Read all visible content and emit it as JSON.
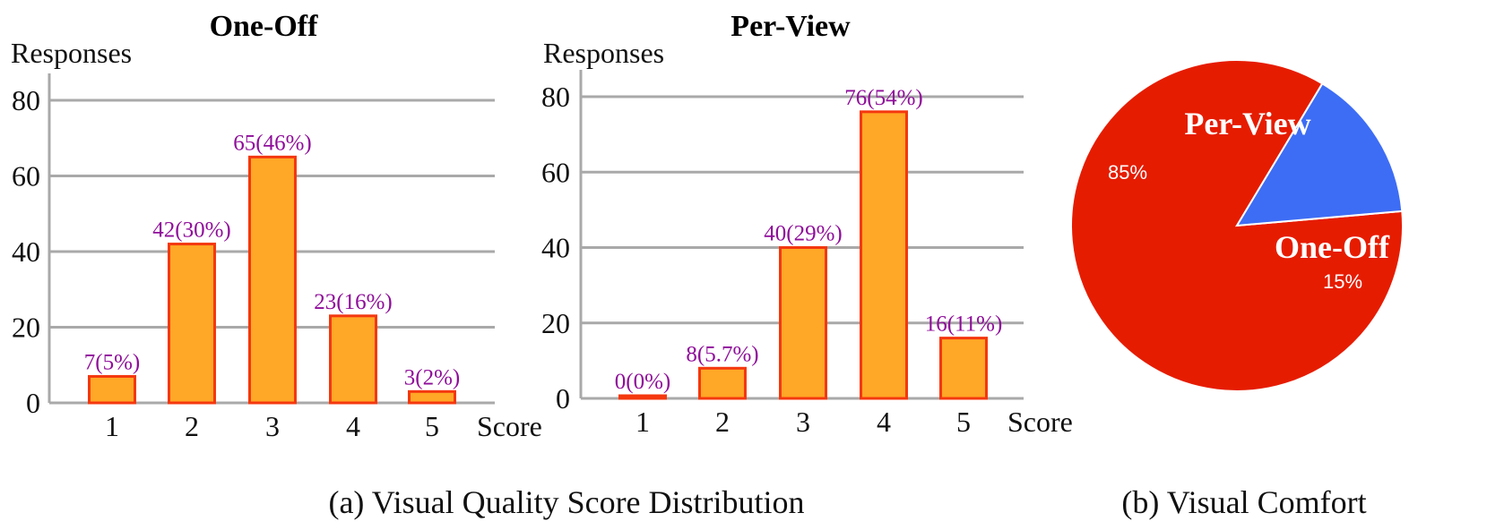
{
  "chart_data": [
    {
      "type": "bar",
      "title": "One-Off",
      "ylabel": "Responses",
      "xlabel": "Score",
      "categories": [
        "1",
        "2",
        "3",
        "4",
        "5"
      ],
      "values": [
        7,
        42,
        65,
        23,
        3
      ],
      "data_labels": [
        "7(5%)",
        "42(30%)",
        "65(46%)",
        "23(16%)",
        "3(2%)"
      ],
      "y_ticks": [
        "0",
        "20",
        "40",
        "60",
        "80"
      ],
      "ylim": [
        0,
        80
      ],
      "grid": true,
      "colors": {
        "bar_fill": "#ffa726",
        "bar_edge": "#f4380f",
        "data_label": "#8f0d9a",
        "grid": "#a9a9a9"
      }
    },
    {
      "type": "bar",
      "title": "Per-View",
      "ylabel": "Responses",
      "xlabel": "Score",
      "categories": [
        "1",
        "2",
        "3",
        "4",
        "5"
      ],
      "values": [
        0,
        8,
        40,
        76,
        16
      ],
      "data_labels": [
        "0(0%)",
        "8(5.7%)",
        "40(29%)",
        "76(54%)",
        "16(11%)"
      ],
      "y_ticks": [
        "0",
        "20",
        "40",
        "60",
        "80"
      ],
      "ylim": [
        0,
        80
      ],
      "grid": true,
      "colors": {
        "bar_fill": "#ffa726",
        "bar_edge": "#f4380f",
        "data_label": "#8f0d9a",
        "grid": "#a9a9a9"
      }
    },
    {
      "type": "pie",
      "slices": [
        {
          "name": "Per-View",
          "value": 85,
          "label": "85%",
          "color": "#e61c00"
        },
        {
          "name": "One-Off",
          "value": 15,
          "label": "15%",
          "color": "#3d6df5"
        }
      ]
    }
  ],
  "captions": {
    "a": "(a) Visual Quality Score Distribution",
    "b": "(b) Visual Comfort"
  }
}
